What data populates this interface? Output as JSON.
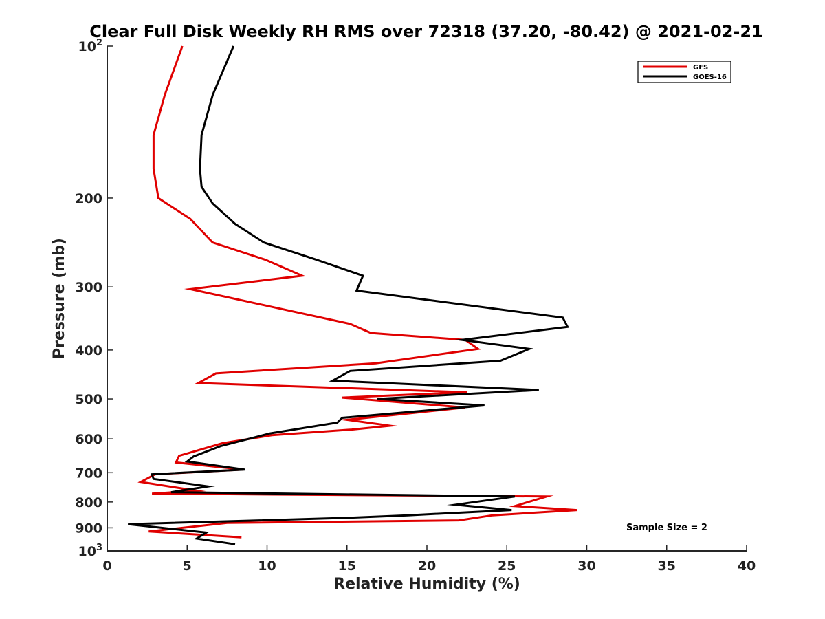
{
  "chart_data": {
    "type": "line",
    "title": "Clear Full Disk Weekly RH RMS over 72318 (37.20, -80.42) @ 2021-02-21",
    "xlabel": "Relative Humidity (%)",
    "ylabel": "Pressure (mb)",
    "xlim": [
      0,
      40
    ],
    "ylim": [
      100,
      1000
    ],
    "yscale": "log",
    "y_reversed": true,
    "xticks": [
      0,
      5,
      10,
      15,
      20,
      25,
      30,
      35,
      40
    ],
    "xtick_labels": [
      "0",
      "5",
      "10",
      "15",
      "20",
      "25",
      "30",
      "35",
      "40"
    ],
    "yticks": [
      100,
      200,
      300,
      400,
      500,
      600,
      700,
      800,
      900,
      1000
    ],
    "ytick_labels": [
      {
        "base": "10",
        "sup": "2"
      },
      {
        "base": "200",
        "sup": ""
      },
      {
        "base": "300",
        "sup": ""
      },
      {
        "base": "400",
        "sup": ""
      },
      {
        "base": "500",
        "sup": ""
      },
      {
        "base": "600",
        "sup": ""
      },
      {
        "base": "700",
        "sup": ""
      },
      {
        "base": "800",
        "sup": ""
      },
      {
        "base": "900",
        "sup": ""
      },
      {
        "base": "10",
        "sup": "3"
      }
    ],
    "grid": false,
    "legend_position": "top-right",
    "annotation": "Sample Size = 2",
    "series": [
      {
        "name": "GFS",
        "color": "#e00000",
        "points": [
          [
            4.7,
            100
          ],
          [
            3.6,
            125
          ],
          [
            2.9,
            150
          ],
          [
            2.9,
            175
          ],
          [
            3.2,
            200
          ],
          [
            5.2,
            220
          ],
          [
            6.6,
            245
          ],
          [
            9.9,
            265
          ],
          [
            12.2,
            285
          ],
          [
            5.2,
            303
          ],
          [
            15.2,
            355
          ],
          [
            16.5,
            370
          ],
          [
            22.4,
            382
          ],
          [
            23.2,
            398
          ],
          [
            16.8,
            425
          ],
          [
            6.8,
            445
          ],
          [
            5.7,
            465
          ],
          [
            22.5,
            485
          ],
          [
            14.7,
            497
          ],
          [
            22.4,
            520
          ],
          [
            15.0,
            550
          ],
          [
            17.7,
            565
          ],
          [
            15.3,
            575
          ],
          [
            10.3,
            590
          ],
          [
            7.2,
            612
          ],
          [
            4.5,
            648
          ],
          [
            4.3,
            668
          ],
          [
            8.5,
            690
          ],
          [
            3.0,
            705
          ],
          [
            2.1,
            730
          ],
          [
            5.6,
            760
          ],
          [
            2.8,
            770
          ],
          [
            27.5,
            780
          ],
          [
            25.5,
            815
          ],
          [
            29.4,
            830
          ],
          [
            24.1,
            850
          ],
          [
            22.0,
            870
          ],
          [
            7.5,
            880
          ],
          [
            2.6,
            915
          ],
          [
            8.4,
            940
          ]
        ]
      },
      {
        "name": "GOES-16",
        "color": "#000000",
        "points": [
          [
            7.9,
            100
          ],
          [
            6.6,
            125
          ],
          [
            5.9,
            150
          ],
          [
            5.8,
            175
          ],
          [
            5.9,
            190
          ],
          [
            6.6,
            205
          ],
          [
            8.0,
            225
          ],
          [
            9.8,
            245
          ],
          [
            13.1,
            265
          ],
          [
            16.0,
            285
          ],
          [
            15.6,
            305
          ],
          [
            28.5,
            345
          ],
          [
            28.8,
            360
          ],
          [
            22.2,
            382
          ],
          [
            26.4,
            398
          ],
          [
            24.6,
            420
          ],
          [
            15.2,
            440
          ],
          [
            14.1,
            460
          ],
          [
            27.0,
            480
          ],
          [
            16.9,
            500
          ],
          [
            23.6,
            515
          ],
          [
            14.7,
            545
          ],
          [
            14.4,
            557
          ],
          [
            10.2,
            585
          ],
          [
            7.1,
            620
          ],
          [
            5.4,
            650
          ],
          [
            5.0,
            665
          ],
          [
            8.6,
            690
          ],
          [
            2.8,
            705
          ],
          [
            2.9,
            720
          ],
          [
            6.3,
            745
          ],
          [
            4.0,
            765
          ],
          [
            25.5,
            780
          ],
          [
            21.8,
            810
          ],
          [
            25.3,
            830
          ],
          [
            18.8,
            850
          ],
          [
            15.0,
            860
          ],
          [
            1.3,
            885
          ],
          [
            6.2,
            920
          ],
          [
            5.6,
            945
          ],
          [
            8.0,
            970
          ]
        ]
      }
    ]
  }
}
